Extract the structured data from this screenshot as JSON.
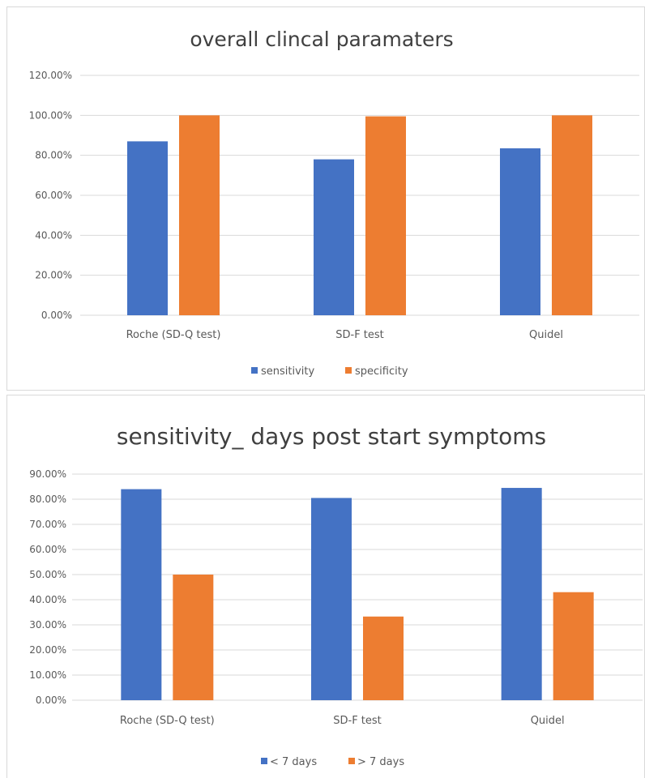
{
  "chart_data": [
    {
      "type": "bar",
      "title": "overall clincal paramaters",
      "categories": [
        "Roche (SD-Q test)",
        "SD-F test",
        "Quidel"
      ],
      "series": [
        {
          "name": "sensitivity",
          "values": [
            87.0,
            78.0,
            83.5
          ],
          "color": "#4472c4"
        },
        {
          "name": "specificity",
          "values": [
            100.0,
            99.5,
            100.0
          ],
          "color": "#ed7d31"
        }
      ],
      "ylim": [
        0,
        120
      ],
      "yticks": [
        0,
        20,
        40,
        60,
        80,
        100,
        120
      ],
      "ytick_labels": [
        "0.00%",
        "20.00%",
        "40.00%",
        "60.00%",
        "80.00%",
        "100.00%",
        "120.00%"
      ],
      "grid": true,
      "legend": "bottom"
    },
    {
      "type": "bar",
      "title": "sensitivity_ days post start symptoms",
      "categories": [
        "Roche (SD-Q test)",
        "SD-F test",
        "Quidel"
      ],
      "series": [
        {
          "name": "< 7 days",
          "values": [
            84.0,
            80.5,
            84.5
          ],
          "color": "#4472c4"
        },
        {
          "name": "> 7 days",
          "values": [
            50.0,
            33.3,
            43.0
          ],
          "color": "#ed7d31"
        }
      ],
      "ylim": [
        0,
        90
      ],
      "yticks": [
        0,
        10,
        20,
        30,
        40,
        50,
        60,
        70,
        80,
        90
      ],
      "ytick_labels": [
        "0.00%",
        "10.00%",
        "20.00%",
        "30.00%",
        "40.00%",
        "50.00%",
        "60.00%",
        "70.00%",
        "80.00%",
        "90.00%"
      ],
      "grid": true,
      "legend": "bottom"
    }
  ]
}
